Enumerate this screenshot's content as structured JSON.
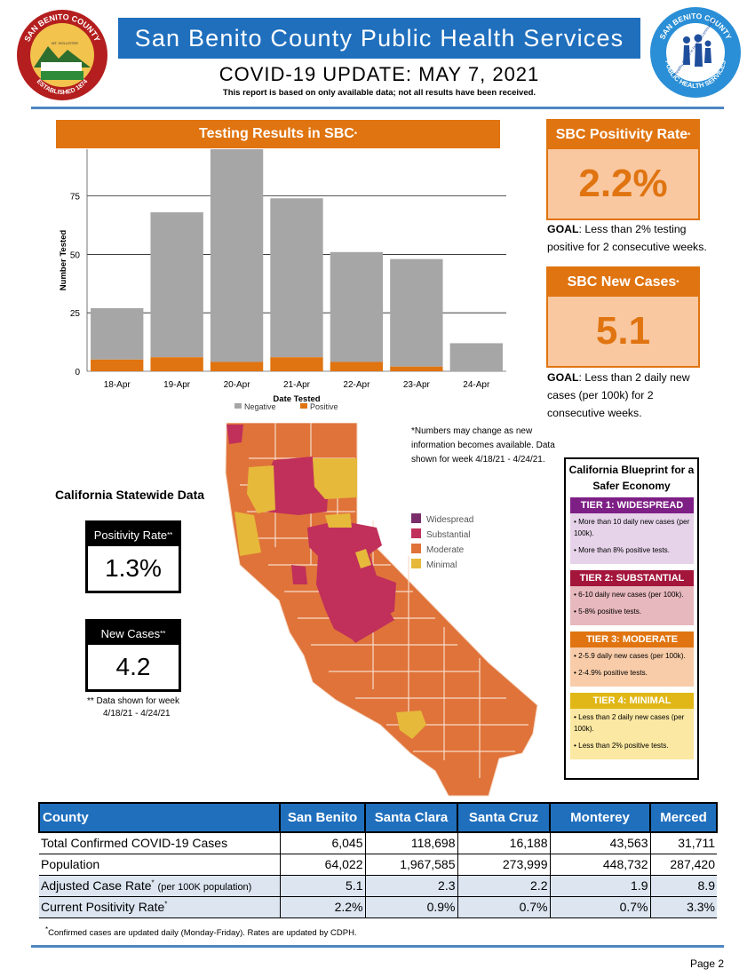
{
  "header": {
    "title": "San Benito County Public Health Services",
    "update": "COVID-19 UPDATE: MAY 7, 2021",
    "note": "This report is based on only available data; not all results have been received."
  },
  "seal_left": {
    "ring_top": "SAN BENITO COUNTY",
    "ring_bottom": "ESTABLISHED 1874",
    "center": "MT. HOLLISTER"
  },
  "seal_right": {
    "ring_top": "SAN BENITO COUNTY",
    "ring_bottom": "PUBLIC HEALTH SERVICES",
    "center": "Healthy People in Healthy Communities"
  },
  "chart_data": {
    "type": "bar",
    "title": "Testing Results in SBC",
    "title_mark": "*",
    "xlabel": "Date Tested",
    "ylabel": "Number Tested",
    "categories": [
      "18-Apr",
      "19-Apr",
      "20-Apr",
      "21-Apr",
      "22-Apr",
      "23-Apr",
      "24-Apr"
    ],
    "series": [
      {
        "name": "Positive",
        "color": "#e07410",
        "values": [
          5,
          6,
          4,
          6,
          4,
          2,
          0
        ]
      },
      {
        "name": "Negative",
        "color": "#a6a6a6",
        "values": [
          22,
          62,
          91,
          68,
          47,
          46,
          12
        ]
      }
    ],
    "stacked": true,
    "yticks": [
      0,
      25,
      50,
      75
    ],
    "ylim": [
      0,
      95
    ],
    "legend": "bottom"
  },
  "kpi": {
    "positivity": {
      "label": "SBC Positivity Rate",
      "mark": "*",
      "value": "2.2%",
      "goal_label": "GOAL",
      "goal_text": ": Less than 2% testing positive for 2 consecutive weeks."
    },
    "new_cases": {
      "label": "SBC New Cases",
      "mark": "*",
      "value": "5.1",
      "goal_label": "GOAL",
      "goal_text": ": Less than 2 daily new cases (per 100k) for 2 consecutive weeks."
    }
  },
  "statewide": {
    "title": "California Statewide Data",
    "positivity_label": "Positivity Rate",
    "positivity_mark": "**",
    "positivity_value": "1.3%",
    "cases_label": "New Cases",
    "cases_mark": "**",
    "cases_value": "4.2",
    "note_line1": "** Data shown for week",
    "note_line2": "4/18/21 - 4/24/21"
  },
  "map": {
    "note": "*Numbers may change as new information becomes available. Data shown for week 4/18/21 - 4/24/21.",
    "legend": [
      {
        "label": "Widespread",
        "color": "#7b2d6b"
      },
      {
        "label": "Substantial",
        "color": "#c0305a"
      },
      {
        "label": "Moderate",
        "color": "#e0733a"
      },
      {
        "label": "Minimal",
        "color": "#e6b93b"
      }
    ]
  },
  "blueprint": {
    "title": "California Blueprint for a Safer Economy",
    "tiers": [
      {
        "head": "TIER 1: WIDESPREAD",
        "color": "#7e1f86",
        "bg": "#e6d3e9",
        "line1": "• More than 10 daily new cases (per 100k).",
        "line2": "• More than 8% positive tests."
      },
      {
        "head": "TIER 2: SUBSTANTIAL",
        "color": "#a3153b",
        "bg": "#e7b8bd",
        "line1": "• 6-10 daily new cases (per 100k).",
        "line2": "• 5-8% positive tests."
      },
      {
        "head": "TIER 3: MODERATE",
        "color": "#e07410",
        "bg": "#f8cca8",
        "line1": "• 2-5.9 daily new cases (per 100k).",
        "line2": "• 2-4.9% positive tests."
      },
      {
        "head": "TIER 4: MINIMAL",
        "color": "#e0b716",
        "bg": "#fbe8a2",
        "line1": "• Less than 2 daily new cases (per 100k).",
        "line2": "• Less than 2% positive tests."
      }
    ]
  },
  "table": {
    "headers": [
      "County",
      "San Benito",
      "Santa Clara",
      "Santa Cruz",
      "Monterey",
      "Merced"
    ],
    "rows": [
      {
        "label": "Total Confirmed COVID-19 Cases",
        "values": [
          "6,045",
          "118,698",
          "16,188",
          "43,563",
          "31,711"
        ]
      },
      {
        "label": "Population",
        "values": [
          "64,022",
          "1,967,585",
          "273,999",
          "448,732",
          "287,420"
        ]
      },
      {
        "label": "Adjusted Case Rate",
        "mark": "*",
        "suffix": "(per 100K population)",
        "values": [
          "5.1",
          "2.3",
          "2.2",
          "1.9",
          "8.9"
        ]
      },
      {
        "label": "Current Positivity Rate",
        "mark": "*",
        "values": [
          "2.2%",
          "0.9%",
          "0.7%",
          "0.7%",
          "3.3%"
        ]
      }
    ]
  },
  "footnote": {
    "mark": "*",
    "text": "Confirmed cases are updated daily (Monday-Friday). Rates are updated by CDPH."
  },
  "page": "Page 2"
}
